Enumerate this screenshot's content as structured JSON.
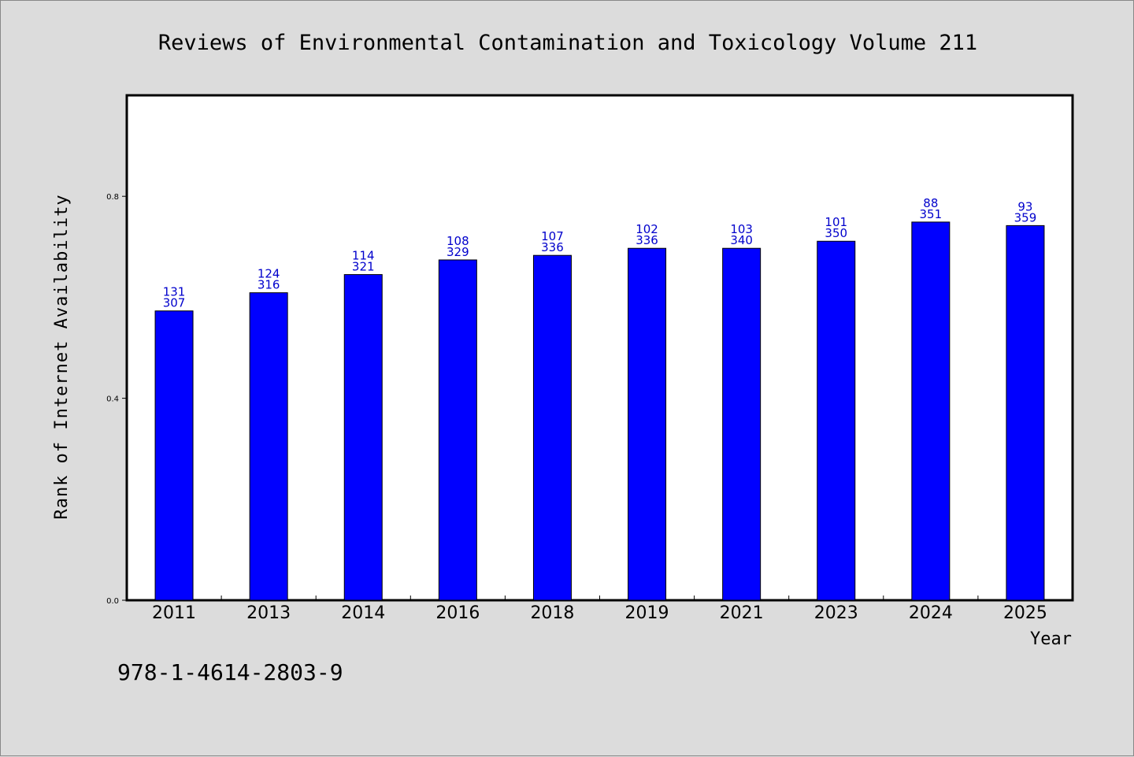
{
  "chart_data": {
    "type": "bar",
    "title": "Reviews of Environmental Contamination and Toxicology Volume 211",
    "xlabel": "Year",
    "ylabel": "Rank of Internet Availability",
    "ylim": [
      0,
      1.0
    ],
    "yticks": [
      "0.0",
      "0.4",
      "0.8"
    ],
    "grid": false,
    "categories": [
      "2011",
      "2013",
      "2014",
      "2016",
      "2018",
      "2019",
      "2021",
      "2023",
      "2024",
      "2025"
    ],
    "values": [
      0.573,
      0.609,
      0.645,
      0.674,
      0.683,
      0.697,
      0.697,
      0.711,
      0.749,
      0.742
    ],
    "label_top": [
      "131",
      "124",
      "114",
      "108",
      "107",
      "102",
      "103",
      "101",
      "88",
      "93"
    ],
    "label_bottom": [
      "307",
      "316",
      "321",
      "329",
      "336",
      "336",
      "340",
      "350",
      "351",
      "359"
    ],
    "bar_color": "#0000ff",
    "label_color": "#0000cc"
  },
  "footer": {
    "isbn": "978-1-4614-2803-9"
  }
}
